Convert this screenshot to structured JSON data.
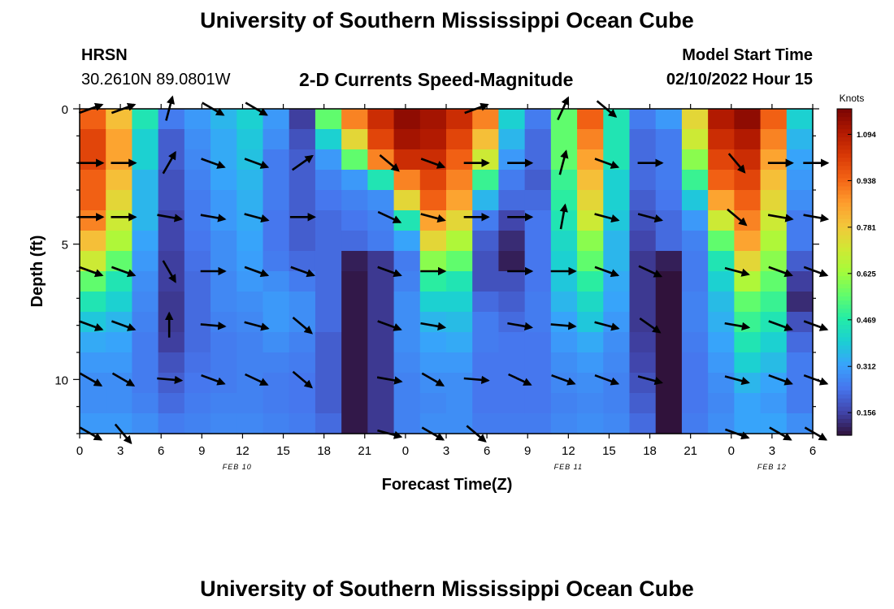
{
  "header": {
    "title": "University of Southern Mississippi Ocean Cube",
    "station": "HRSN",
    "coords": "30.2610N  89.0801W",
    "subtitle": "2-D Currents Speed-Magnitude",
    "model_start_label": "Model Start Time",
    "model_start_value": "02/10/2022 Hour 15",
    "footer_title": "University of Southern Mississippi Ocean Cube"
  },
  "colors": {
    "scale": [
      "#30123b",
      "#4145ab",
      "#4675ed",
      "#39a2fc",
      "#1bcfd4",
      "#24eca6",
      "#61fc6c",
      "#a4fc3b",
      "#d1e834",
      "#f3c63a",
      "#fe9b2d",
      "#f36315",
      "#d93806",
      "#b11901",
      "#7a0403"
    ]
  },
  "chart_data": {
    "type": "heatmap",
    "title": "2-D Currents Speed-Magnitude",
    "xlabel": "Forecast Time(Z)",
    "ylabel": "Depth (ft)",
    "xlim": [
      0,
      27
    ],
    "ylim": [
      0,
      12
    ],
    "x_tick_labels": [
      "0",
      "3",
      "6",
      "9",
      "12",
      "15",
      "18",
      "21",
      "0",
      "3",
      "6",
      "9",
      "12",
      "15",
      "18",
      "21",
      "0",
      "3",
      "6"
    ],
    "y_tick_labels": [
      "0",
      "5",
      "10"
    ],
    "y_tick_values": [
      0,
      5,
      10
    ],
    "date_labels": [
      {
        "text": "FEB 10",
        "col": 5.8
      },
      {
        "text": "FEB 11",
        "col": 18.0
      },
      {
        "text": "FEB 12",
        "col": 25.5
      }
    ],
    "colorbar": {
      "label": "Knots",
      "min": 0.08,
      "max": 1.18,
      "ticks": [
        0.156,
        0.312,
        0.469,
        0.625,
        0.781,
        0.938,
        1.094
      ],
      "tick_labels": [
        "0.156",
        "0.312",
        "0.469",
        "0.625",
        "0.781",
        "0.938",
        "1.094"
      ]
    },
    "speed_knots": [
      [
        0.95,
        0.8,
        0.45,
        0.25,
        0.3,
        0.35,
        0.4,
        0.3,
        0.15,
        0.55,
        0.9,
        1.05,
        1.15,
        1.12,
        1.05,
        0.9,
        0.4,
        0.25,
        0.55,
        0.95,
        0.45,
        0.25,
        0.3,
        0.75,
        1.1,
        1.15,
        0.95,
        0.4
      ],
      [
        1.0,
        0.85,
        0.4,
        0.2,
        0.28,
        0.33,
        0.38,
        0.28,
        0.18,
        0.4,
        0.75,
        1.0,
        1.12,
        1.1,
        1.0,
        0.8,
        0.35,
        0.22,
        0.55,
        0.9,
        0.45,
        0.22,
        0.25,
        0.7,
        1.05,
        1.1,
        0.9,
        0.35
      ],
      [
        1.0,
        0.85,
        0.4,
        0.2,
        0.27,
        0.33,
        0.37,
        0.25,
        0.2,
        0.3,
        0.55,
        0.9,
        1.05,
        1.05,
        0.95,
        0.7,
        0.3,
        0.22,
        0.55,
        0.85,
        0.45,
        0.22,
        0.25,
        0.6,
        1.0,
        1.05,
        0.85,
        0.32
      ],
      [
        0.95,
        0.8,
        0.35,
        0.18,
        0.26,
        0.32,
        0.35,
        0.25,
        0.2,
        0.26,
        0.3,
        0.45,
        0.9,
        1.0,
        0.9,
        0.5,
        0.25,
        0.2,
        0.5,
        0.8,
        0.4,
        0.22,
        0.25,
        0.5,
        0.95,
        1.0,
        0.8,
        0.3
      ],
      [
        0.95,
        0.75,
        0.35,
        0.18,
        0.25,
        0.3,
        0.34,
        0.25,
        0.2,
        0.24,
        0.26,
        0.28,
        0.75,
        0.95,
        0.85,
        0.35,
        0.22,
        0.22,
        0.48,
        0.75,
        0.4,
        0.2,
        0.24,
        0.38,
        0.85,
        0.95,
        0.75,
        0.28
      ],
      [
        0.9,
        0.7,
        0.35,
        0.16,
        0.25,
        0.3,
        0.33,
        0.24,
        0.2,
        0.22,
        0.24,
        0.26,
        0.45,
        0.85,
        0.75,
        0.25,
        0.16,
        0.24,
        0.45,
        0.7,
        0.38,
        0.18,
        0.22,
        0.3,
        0.7,
        0.9,
        0.7,
        0.25
      ],
      [
        0.8,
        0.65,
        0.32,
        0.16,
        0.24,
        0.28,
        0.32,
        0.24,
        0.2,
        0.22,
        0.22,
        0.25,
        0.32,
        0.75,
        0.65,
        0.2,
        0.12,
        0.24,
        0.42,
        0.6,
        0.35,
        0.16,
        0.22,
        0.26,
        0.55,
        0.85,
        0.65,
        0.25
      ],
      [
        0.7,
        0.55,
        0.3,
        0.15,
        0.23,
        0.28,
        0.31,
        0.25,
        0.22,
        0.22,
        0.1,
        0.14,
        0.25,
        0.6,
        0.55,
        0.18,
        0.1,
        0.24,
        0.4,
        0.55,
        0.35,
        0.14,
        0.1,
        0.25,
        0.45,
        0.75,
        0.6,
        0.2
      ],
      [
        0.55,
        0.45,
        0.28,
        0.15,
        0.22,
        0.27,
        0.3,
        0.28,
        0.25,
        0.22,
        0.09,
        0.14,
        0.26,
        0.48,
        0.45,
        0.18,
        0.18,
        0.24,
        0.38,
        0.48,
        0.33,
        0.14,
        0.08,
        0.25,
        0.4,
        0.65,
        0.55,
        0.15
      ],
      [
        0.45,
        0.4,
        0.27,
        0.14,
        0.22,
        0.27,
        0.28,
        0.3,
        0.28,
        0.22,
        0.09,
        0.14,
        0.28,
        0.4,
        0.4,
        0.22,
        0.2,
        0.25,
        0.35,
        0.42,
        0.32,
        0.14,
        0.08,
        0.26,
        0.36,
        0.55,
        0.5,
        0.12
      ],
      [
        0.38,
        0.35,
        0.26,
        0.14,
        0.22,
        0.26,
        0.27,
        0.3,
        0.28,
        0.22,
        0.09,
        0.14,
        0.28,
        0.35,
        0.36,
        0.25,
        0.22,
        0.25,
        0.32,
        0.38,
        0.3,
        0.14,
        0.08,
        0.26,
        0.34,
        0.5,
        0.45,
        0.18
      ],
      [
        0.33,
        0.32,
        0.25,
        0.15,
        0.22,
        0.25,
        0.26,
        0.28,
        0.26,
        0.2,
        0.09,
        0.14,
        0.28,
        0.32,
        0.33,
        0.25,
        0.24,
        0.24,
        0.3,
        0.33,
        0.28,
        0.15,
        0.08,
        0.25,
        0.32,
        0.45,
        0.4,
        0.22
      ],
      [
        0.3,
        0.3,
        0.25,
        0.18,
        0.23,
        0.25,
        0.26,
        0.26,
        0.25,
        0.2,
        0.09,
        0.14,
        0.27,
        0.3,
        0.3,
        0.24,
        0.24,
        0.24,
        0.28,
        0.3,
        0.27,
        0.16,
        0.08,
        0.24,
        0.3,
        0.4,
        0.36,
        0.25
      ],
      [
        0.28,
        0.28,
        0.25,
        0.2,
        0.24,
        0.25,
        0.26,
        0.25,
        0.24,
        0.2,
        0.09,
        0.14,
        0.26,
        0.28,
        0.28,
        0.24,
        0.24,
        0.24,
        0.27,
        0.28,
        0.26,
        0.18,
        0.08,
        0.24,
        0.28,
        0.35,
        0.32,
        0.25
      ],
      [
        0.28,
        0.28,
        0.26,
        0.22,
        0.25,
        0.26,
        0.26,
        0.25,
        0.24,
        0.2,
        0.09,
        0.14,
        0.26,
        0.27,
        0.28,
        0.24,
        0.24,
        0.24,
        0.26,
        0.27,
        0.26,
        0.2,
        0.08,
        0.24,
        0.27,
        0.32,
        0.3,
        0.25
      ],
      [
        0.3,
        0.3,
        0.28,
        0.25,
        0.26,
        0.27,
        0.27,
        0.26,
        0.25,
        0.22,
        0.09,
        0.14,
        0.26,
        0.28,
        0.28,
        0.25,
        0.25,
        0.25,
        0.27,
        0.28,
        0.27,
        0.22,
        0.08,
        0.25,
        0.28,
        0.32,
        0.32,
        0.28
      ]
    ],
    "vectors": {
      "cols": [
        0.4,
        1.6,
        3.3,
        4.9,
        6.5,
        8.2,
        9.8,
        11.4,
        13.0,
        14.6,
        16.2,
        17.8,
        19.4,
        21.0,
        22.6,
        24.2,
        25.8,
        27.1
      ],
      "depths": [
        0,
        2,
        4,
        6,
        8,
        10,
        12
      ],
      "angles_deg": [
        [
          20,
          20,
          75,
          -30,
          -30,
          null,
          null,
          null,
          null,
          20,
          null,
          65,
          -40,
          null,
          null,
          null,
          null,
          null
        ],
        [
          0,
          0,
          60,
          -20,
          -20,
          35,
          null,
          -40,
          -20,
          0,
          0,
          75,
          -20,
          0,
          null,
          -50,
          0,
          0
        ],
        [
          0,
          0,
          -10,
          -10,
          -15,
          0,
          null,
          -25,
          -15,
          0,
          0,
          80,
          -15,
          -15,
          null,
          -40,
          -10,
          -10
        ],
        [
          -20,
          -20,
          -60,
          0,
          -20,
          -20,
          null,
          -20,
          0,
          null,
          0,
          0,
          -20,
          -25,
          null,
          -15,
          -20,
          -20
        ],
        [
          -20,
          -20,
          90,
          -5,
          -15,
          -40,
          null,
          -20,
          -10,
          null,
          -10,
          -5,
          -15,
          -35,
          null,
          -10,
          -20,
          -20
        ],
        [
          -30,
          -30,
          -5,
          -20,
          -25,
          -40,
          null,
          -10,
          -30,
          -5,
          -25,
          -20,
          -20,
          -15,
          null,
          -15,
          -20,
          -20
        ],
        [
          -30,
          -50,
          null,
          null,
          null,
          null,
          null,
          -15,
          -30,
          -40,
          null,
          null,
          null,
          null,
          null,
          -20,
          -30,
          -30
        ]
      ]
    }
  }
}
